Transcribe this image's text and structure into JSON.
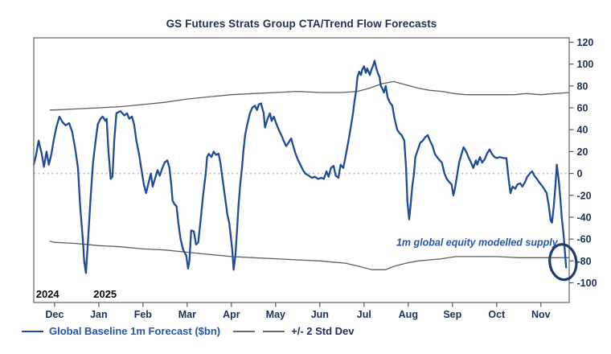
{
  "title": "GS Futures Strats Group CTA/Trend Flow Forecasts",
  "chart_data": {
    "type": "line",
    "title": "GS Futures Strats Group CTA/Trend Flow Forecasts",
    "xlabel": "",
    "ylabel": "",
    "xlim": [
      -0.47,
      11.64
    ],
    "ylim": [
      -118,
      124
    ],
    "grid": false,
    "legend_position": "bottom-left",
    "x_axis": {
      "tick_labels": [
        "Dec",
        "Jan",
        "Feb",
        "Mar",
        "Apr",
        "May",
        "Jun",
        "Jul",
        "Aug",
        "Sep",
        "Oct",
        "Nov"
      ],
      "year_labels": [
        {
          "text": "2024",
          "x": -0.42
        },
        {
          "text": "2025",
          "x": 0.88
        }
      ]
    },
    "y_axis": {
      "side": "right",
      "ticks": [
        -100,
        -80,
        -60,
        -40,
        -20,
        0,
        20,
        40,
        60,
        80,
        100,
        120
      ]
    },
    "zero_line": {
      "value": 0,
      "style": "dotted",
      "color": "#b3b3b3"
    },
    "series": [
      {
        "name": "Global Baseline 1m Forecast ($bn)",
        "color": "#1e4c96",
        "width": 2.3,
        "style": "solid",
        "points": [
          [
            -0.47,
            8
          ],
          [
            -0.42,
            16
          ],
          [
            -0.36,
            30
          ],
          [
            -0.29,
            18
          ],
          [
            -0.24,
            6
          ],
          [
            -0.18,
            20
          ],
          [
            -0.13,
            8
          ],
          [
            -0.07,
            18
          ],
          [
            -0.02,
            30
          ],
          [
            0.04,
            42
          ],
          [
            0.11,
            52
          ],
          [
            0.18,
            47
          ],
          [
            0.25,
            44
          ],
          [
            0.33,
            46
          ],
          [
            0.4,
            38
          ],
          [
            0.47,
            22
          ],
          [
            0.53,
            5
          ],
          [
            0.58,
            -30
          ],
          [
            0.64,
            -60
          ],
          [
            0.67,
            -80
          ],
          [
            0.71,
            -91
          ],
          [
            0.76,
            -60
          ],
          [
            0.82,
            -20
          ],
          [
            0.87,
            10
          ],
          [
            0.93,
            30
          ],
          [
            0.98,
            45
          ],
          [
            1.04,
            50
          ],
          [
            1.09,
            52
          ],
          [
            1.15,
            48
          ],
          [
            1.18,
            50
          ],
          [
            1.22,
            20
          ],
          [
            1.27,
            -5
          ],
          [
            1.31,
            -3
          ],
          [
            1.35,
            30
          ],
          [
            1.4,
            55
          ],
          [
            1.49,
            57
          ],
          [
            1.58,
            53
          ],
          [
            1.64,
            55
          ],
          [
            1.69,
            50
          ],
          [
            1.75,
            52
          ],
          [
            1.8,
            45
          ],
          [
            1.85,
            30
          ],
          [
            1.91,
            18
          ],
          [
            1.96,
            5
          ],
          [
            2.02,
            -10
          ],
          [
            2.07,
            -18
          ],
          [
            2.13,
            -8
          ],
          [
            2.18,
            0
          ],
          [
            2.22,
            -12
          ],
          [
            2.27,
            -5
          ],
          [
            2.33,
            3
          ],
          [
            2.38,
            -2
          ],
          [
            2.44,
            5
          ],
          [
            2.49,
            10
          ],
          [
            2.55,
            12
          ],
          [
            2.6,
            5
          ],
          [
            2.64,
            -10
          ],
          [
            2.67,
            -25
          ],
          [
            2.71,
            -28
          ],
          [
            2.76,
            -30
          ],
          [
            2.8,
            -45
          ],
          [
            2.85,
            -60
          ],
          [
            2.91,
            -70
          ],
          [
            2.95,
            -73
          ],
          [
            2.98,
            -75
          ],
          [
            3.02,
            -87
          ],
          [
            3.05,
            -80
          ],
          [
            3.09,
            -52
          ],
          [
            3.15,
            -53
          ],
          [
            3.2,
            -65
          ],
          [
            3.25,
            -63
          ],
          [
            3.31,
            -40
          ],
          [
            3.36,
            -20
          ],
          [
            3.42,
            0
          ],
          [
            3.45,
            15
          ],
          [
            3.49,
            18
          ],
          [
            3.55,
            15
          ],
          [
            3.6,
            20
          ],
          [
            3.65,
            17
          ],
          [
            3.71,
            18
          ],
          [
            3.75,
            10
          ],
          [
            3.8,
            -5
          ],
          [
            3.85,
            -20
          ],
          [
            3.91,
            -38
          ],
          [
            3.95,
            -45
          ],
          [
            3.98,
            -55
          ],
          [
            4.02,
            -70
          ],
          [
            4.05,
            -88
          ],
          [
            4.09,
            -75
          ],
          [
            4.13,
            -50
          ],
          [
            4.16,
            -30
          ],
          [
            4.2,
            -10
          ],
          [
            4.24,
            5
          ],
          [
            4.27,
            20
          ],
          [
            4.31,
            35
          ],
          [
            4.36,
            45
          ],
          [
            4.42,
            55
          ],
          [
            4.47,
            60
          ],
          [
            4.53,
            62
          ],
          [
            4.58,
            58
          ],
          [
            4.62,
            63
          ],
          [
            4.67,
            64
          ],
          [
            4.73,
            55
          ],
          [
            4.76,
            42
          ],
          [
            4.82,
            50
          ],
          [
            4.87,
            55
          ],
          [
            4.91,
            48
          ],
          [
            4.96,
            52
          ],
          [
            5.02,
            45
          ],
          [
            5.07,
            40
          ],
          [
            5.13,
            35
          ],
          [
            5.18,
            30
          ],
          [
            5.24,
            25
          ],
          [
            5.29,
            28
          ],
          [
            5.35,
            32
          ],
          [
            5.4,
            25
          ],
          [
            5.45,
            18
          ],
          [
            5.51,
            12
          ],
          [
            5.56,
            8
          ],
          [
            5.62,
            3
          ],
          [
            5.67,
            0
          ],
          [
            5.75,
            -2
          ],
          [
            5.82,
            -4
          ],
          [
            5.89,
            -3
          ],
          [
            5.96,
            -5
          ],
          [
            6.04,
            -4
          ],
          [
            6.09,
            -5
          ],
          [
            6.15,
            2
          ],
          [
            6.2,
            -3
          ],
          [
            6.25,
            5
          ],
          [
            6.31,
            7
          ],
          [
            6.36,
            -2
          ],
          [
            6.42,
            -4
          ],
          [
            6.47,
            8
          ],
          [
            6.53,
            5
          ],
          [
            6.58,
            15
          ],
          [
            6.64,
            28
          ],
          [
            6.69,
            40
          ],
          [
            6.75,
            55
          ],
          [
            6.78,
            65
          ],
          [
            6.82,
            75
          ],
          [
            6.85,
            88
          ],
          [
            6.89,
            93
          ],
          [
            6.93,
            90
          ],
          [
            6.96,
            95
          ],
          [
            7,
            98
          ],
          [
            7.04,
            92
          ],
          [
            7.07,
            96
          ],
          [
            7.13,
            90
          ],
          [
            7.16,
            94
          ],
          [
            7.2,
            98
          ],
          [
            7.24,
            103
          ],
          [
            7.27,
            97
          ],
          [
            7.31,
            92
          ],
          [
            7.35,
            88
          ],
          [
            7.38,
            80
          ],
          [
            7.42,
            77
          ],
          [
            7.45,
            74
          ],
          [
            7.49,
            80
          ],
          [
            7.53,
            70
          ],
          [
            7.58,
            65
          ],
          [
            7.64,
            62
          ],
          [
            7.69,
            50
          ],
          [
            7.75,
            40
          ],
          [
            7.8,
            37
          ],
          [
            7.85,
            35
          ],
          [
            7.91,
            30
          ],
          [
            7.95,
            5
          ],
          [
            7.98,
            -25
          ],
          [
            8.02,
            -42
          ],
          [
            8.05,
            -30
          ],
          [
            8.09,
            -12
          ],
          [
            8.13,
            0
          ],
          [
            8.16,
            15
          ],
          [
            8.22,
            22
          ],
          [
            8.27,
            28
          ],
          [
            8.33,
            30
          ],
          [
            8.38,
            33
          ],
          [
            8.44,
            35
          ],
          [
            8.49,
            30
          ],
          [
            8.55,
            25
          ],
          [
            8.6,
            18
          ],
          [
            8.65,
            15
          ],
          [
            8.71,
            12
          ],
          [
            8.76,
            10
          ],
          [
            8.82,
            0
          ],
          [
            8.87,
            -5
          ],
          [
            8.93,
            -8
          ],
          [
            8.98,
            -10
          ],
          [
            9.02,
            -20
          ],
          [
            9.05,
            -15
          ],
          [
            9.09,
            -5
          ],
          [
            9.15,
            10
          ],
          [
            9.2,
            17
          ],
          [
            9.25,
            24
          ],
          [
            9.31,
            20
          ],
          [
            9.36,
            15
          ],
          [
            9.42,
            10
          ],
          [
            9.47,
            5
          ],
          [
            9.53,
            12
          ],
          [
            9.56,
            8
          ],
          [
            9.62,
            15
          ],
          [
            9.67,
            10
          ],
          [
            9.73,
            13
          ],
          [
            9.78,
            18
          ],
          [
            9.84,
            22
          ],
          [
            9.89,
            18
          ],
          [
            9.95,
            15
          ],
          [
            10,
            14
          ],
          [
            10.07,
            15
          ],
          [
            10.15,
            14
          ],
          [
            10.22,
            14
          ],
          [
            10.27,
            -5
          ],
          [
            10.31,
            -18
          ],
          [
            10.36,
            -12
          ],
          [
            10.42,
            -14
          ],
          [
            10.47,
            -10
          ],
          [
            10.53,
            -9
          ],
          [
            10.58,
            -12
          ],
          [
            10.64,
            -8
          ],
          [
            10.69,
            -3
          ],
          [
            10.75,
            0
          ],
          [
            10.8,
            2
          ],
          [
            10.85,
            -2
          ],
          [
            10.91,
            -5
          ],
          [
            10.96,
            -8
          ],
          [
            11.02,
            -11
          ],
          [
            11.07,
            -14
          ],
          [
            11.13,
            -18
          ],
          [
            11.18,
            -30
          ],
          [
            11.22,
            -43
          ],
          [
            11.25,
            -45
          ],
          [
            11.29,
            -30
          ],
          [
            11.33,
            -10
          ],
          [
            11.36,
            8
          ],
          [
            11.4,
            -5
          ],
          [
            11.44,
            -23
          ],
          [
            11.47,
            -40
          ],
          [
            11.51,
            -55
          ],
          [
            11.54,
            -70
          ],
          [
            11.57,
            -86
          ]
        ]
      },
      {
        "name": "+2 Std Dev",
        "color": "#5f5f5f",
        "width": 1.3,
        "style": "solid",
        "points": [
          [
            -0.1,
            58
          ],
          [
            0,
            58
          ],
          [
            0.49,
            59
          ],
          [
            1,
            60
          ],
          [
            1.49,
            61
          ],
          [
            2,
            63
          ],
          [
            2.49,
            65
          ],
          [
            3,
            68
          ],
          [
            3.49,
            70
          ],
          [
            4,
            72
          ],
          [
            4.49,
            73
          ],
          [
            5,
            74
          ],
          [
            5.49,
            75
          ],
          [
            6,
            74
          ],
          [
            6.49,
            74
          ],
          [
            6.85,
            75
          ],
          [
            7.13,
            78
          ],
          [
            7.4,
            82
          ],
          [
            7.67,
            84
          ],
          [
            7.95,
            81
          ],
          [
            8.22,
            78
          ],
          [
            8.49,
            76
          ],
          [
            8.76,
            75
          ],
          [
            9.04,
            73
          ],
          [
            9.31,
            72
          ],
          [
            9.85,
            72
          ],
          [
            10.4,
            72
          ],
          [
            10.67,
            73
          ],
          [
            11,
            72
          ],
          [
            11.31,
            73
          ],
          [
            11.64,
            74
          ]
        ]
      },
      {
        "name": "-2 Std Dev",
        "color": "#5f5f5f",
        "width": 1.3,
        "style": "solid",
        "points": [
          [
            -0.1,
            -62
          ],
          [
            0,
            -63
          ],
          [
            0.49,
            -64
          ],
          [
            1,
            -66
          ],
          [
            1.49,
            -67
          ],
          [
            2,
            -69
          ],
          [
            2.49,
            -70
          ],
          [
            3,
            -72
          ],
          [
            3.49,
            -74
          ],
          [
            4,
            -76
          ],
          [
            4.49,
            -77
          ],
          [
            5,
            -78
          ],
          [
            5.49,
            -79
          ],
          [
            6,
            -80
          ],
          [
            6.27,
            -81
          ],
          [
            6.58,
            -82
          ],
          [
            6.89,
            -85
          ],
          [
            7.18,
            -88
          ],
          [
            7.49,
            -88
          ],
          [
            7.67,
            -85
          ],
          [
            7.95,
            -82
          ],
          [
            8.22,
            -80
          ],
          [
            8.49,
            -79
          ],
          [
            8.76,
            -78
          ],
          [
            9.07,
            -76
          ],
          [
            9.49,
            -76
          ],
          [
            10,
            -76
          ],
          [
            10.49,
            -77
          ],
          [
            11,
            -77
          ],
          [
            11.31,
            -77
          ],
          [
            11.64,
            -77
          ]
        ]
      }
    ],
    "annotation": {
      "text": "1m global equity modelled supply",
      "x": 11.38,
      "y": -66,
      "color": "#2456ad"
    },
    "highlight_ellipse": {
      "x": 11.5,
      "y": -81,
      "color": "#1d3c70"
    },
    "legend": [
      {
        "label": "Global Baseline 1m Forecast ($bn)",
        "color": "#1e4c96",
        "style": "solid"
      },
      {
        "label": "+/- 2 Std Dev",
        "color": "#6a6a6a",
        "style": "dashed"
      }
    ],
    "colors": {
      "axis_text": "#1b3158",
      "year_text": "#0a0a0a",
      "spine": "#7a7a7a",
      "tick": "#555555"
    }
  }
}
